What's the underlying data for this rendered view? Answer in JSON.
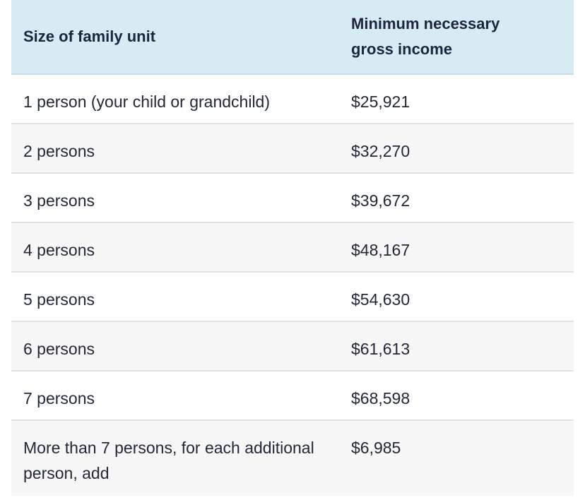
{
  "table": {
    "headers": [
      "Size of family unit",
      "Minimum necessary\ngross income"
    ],
    "header_line1": "Minimum necessary",
    "header_line2": "gross income",
    "rows": [
      {
        "size": "1 person (your child or grandchild)",
        "income": "$25,921"
      },
      {
        "size": "2 persons",
        "income": "$32,270"
      },
      {
        "size": "3 persons",
        "income": "$39,672"
      },
      {
        "size": "4 persons",
        "income": "$48,167"
      },
      {
        "size": "5 persons",
        "income": "$54,630"
      },
      {
        "size": "6 persons",
        "income": "$61,613"
      },
      {
        "size": "7 persons",
        "income": "$68,598"
      },
      {
        "size": "More than 7 persons, for each additional person, add",
        "income": "$6,985"
      }
    ]
  },
  "colors": {
    "header_bg": "#d6ebf4",
    "alt_row_bg": "#f7f7f7",
    "text": "#1f2a44"
  }
}
